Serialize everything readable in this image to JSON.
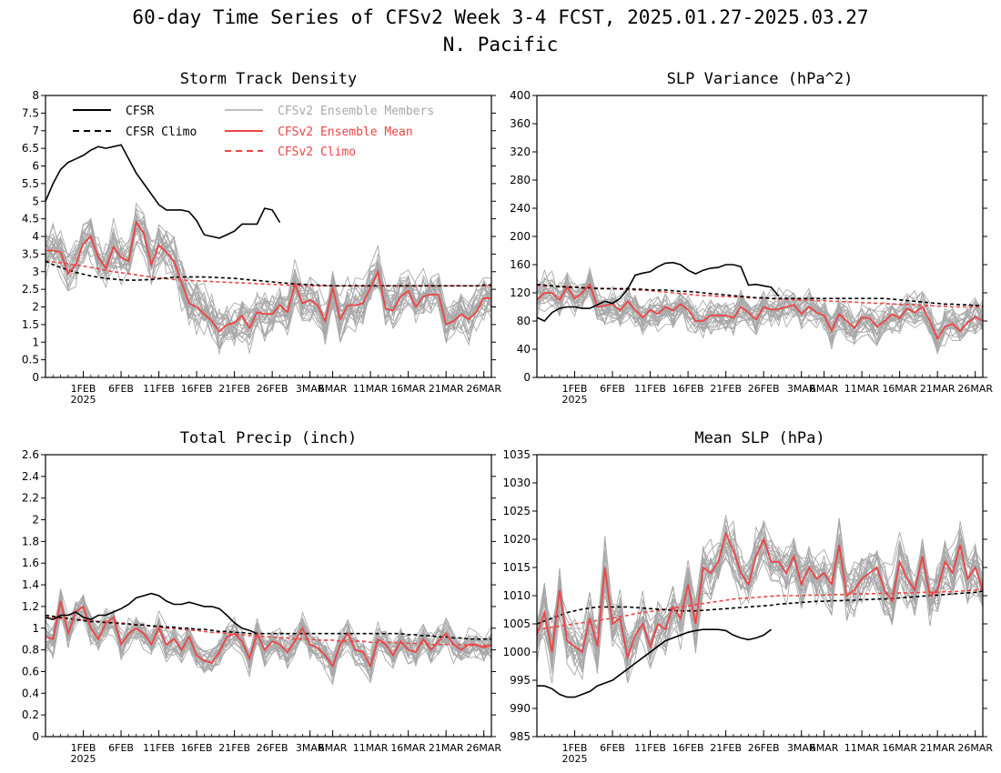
{
  "title_line1": "60-day Time Series of CFSv2 Week 3-4 FCST, 2025.01.27-2025.03.27",
  "title_line2": "N. Pacific",
  "x_ticks": [
    "1FEB",
    "6FEB",
    "11FEB",
    "16FEB",
    "21FEB",
    "26FEB",
    "3MAR",
    "6MAR",
    "11MAR",
    "16MAR",
    "21MAR",
    "26MAR"
  ],
  "x_tick_days": [
    5,
    10,
    15,
    20,
    25,
    30,
    35,
    38,
    43,
    48,
    53,
    58
  ],
  "x_year_label": "2025",
  "x_year_day": 5,
  "legend": {
    "cfsr": "CFSR",
    "cfsr_climo": "CFSR Climo",
    "members": "CFSv2 Ensemble Members",
    "ens_mean": "CFSv2 Ensemble Mean",
    "cfsv2_climo": "CFSv2 Climo"
  },
  "colors": {
    "cfsr": "#000000",
    "members": "#a8a8a8",
    "ens_mean": "#ee4444",
    "frame": "#000000"
  },
  "chart_data": [
    {
      "type": "line",
      "title": "Storm Track Density",
      "x_start": "2025-01-27",
      "n_days": 60,
      "ylim": [
        0,
        8
      ],
      "yticks": [
        "0",
        "0.5",
        "1",
        "1.5",
        "2",
        "2.5",
        "3",
        "3.5",
        "4",
        "4.5",
        "5",
        "5.5",
        "6",
        "6.5",
        "7",
        "7.5",
        "8"
      ],
      "series": [
        {
          "name": "CFSR",
          "style": "cfsr",
          "values": [
            5.0,
            5.5,
            5.9,
            6.1,
            6.2,
            6.3,
            6.45,
            6.55,
            6.5,
            6.55,
            6.6,
            6.2,
            5.8,
            5.5,
            5.2,
            4.9,
            4.75,
            4.75,
            4.75,
            4.7,
            4.45,
            4.05,
            4.0,
            3.95,
            4.05,
            4.15,
            4.35,
            4.35,
            4.35,
            4.8,
            4.75,
            4.4
          ]
        },
        {
          "name": "CFSR Climo",
          "style": "cfsr_climo",
          "values": [
            3.3,
            3.2,
            3.12,
            3.05,
            2.98,
            2.93,
            2.88,
            2.84,
            2.81,
            2.79,
            2.77,
            2.76,
            2.76,
            2.77,
            2.78,
            2.8,
            2.82,
            2.84,
            2.85,
            2.85,
            2.85,
            2.85,
            2.84,
            2.83,
            2.82,
            2.81,
            2.79,
            2.77,
            2.75,
            2.73,
            2.71,
            2.69,
            2.67,
            2.65,
            2.64,
            2.63,
            2.62,
            2.61,
            2.6,
            2.6,
            2.6,
            2.6,
            2.6,
            2.6,
            2.6,
            2.6,
            2.6,
            2.6,
            2.6,
            2.6,
            2.6,
            2.6,
            2.6,
            2.6,
            2.6,
            2.6,
            2.6,
            2.6,
            2.62,
            2.62
          ]
        },
        {
          "name": "CFSv2 Ensemble Mean",
          "style": "ens_mean",
          "values": [
            3.6,
            3.6,
            3.55,
            2.95,
            3.2,
            3.8,
            4.0,
            3.4,
            3.1,
            3.7,
            3.4,
            3.3,
            4.4,
            4.1,
            3.2,
            3.75,
            3.55,
            3.3,
            2.7,
            2.1,
            2.0,
            1.8,
            1.6,
            1.3,
            1.5,
            1.55,
            1.75,
            1.4,
            1.85,
            1.8,
            1.8,
            2.05,
            1.85,
            2.65,
            2.1,
            2.2,
            2.05,
            1.6,
            2.55,
            1.65,
            2.05,
            2.05,
            2.1,
            2.55,
            3.0,
            1.95,
            1.9,
            2.3,
            2.45,
            2.0,
            2.3,
            2.35,
            2.35,
            1.5,
            1.6,
            1.8,
            1.65,
            1.85,
            2.25,
            2.25
          ]
        },
        {
          "name": "CFSv2 Climo",
          "style": "cfsv2_climo",
          "values": [
            3.3,
            3.28,
            3.25,
            3.22,
            3.19,
            3.16,
            3.12,
            3.08,
            3.04,
            3.0,
            2.97,
            2.94,
            2.91,
            2.88,
            2.85,
            2.82,
            2.8,
            2.78,
            2.76,
            2.75,
            2.74,
            2.73,
            2.72,
            2.71,
            2.7,
            2.69,
            2.68,
            2.67,
            2.66,
            2.65,
            2.64,
            2.63,
            2.62,
            2.61,
            2.6,
            2.6,
            2.6,
            2.6,
            2.6,
            2.6,
            2.6,
            2.6,
            2.6,
            2.6,
            2.6,
            2.6,
            2.6,
            2.6,
            2.6,
            2.6,
            2.6,
            2.6,
            2.6,
            2.6,
            2.6,
            2.6,
            2.6,
            2.6,
            2.6,
            2.6
          ]
        }
      ],
      "ensemble": {
        "members": 24,
        "spread": 0.75,
        "seed": 11
      }
    },
    {
      "type": "line",
      "title": "SLP Variance (hPa^2)",
      "x_start": "2025-01-27",
      "n_days": 60,
      "ylim": [
        0,
        400
      ],
      "yticks": [
        "0",
        "40",
        "80",
        "120",
        "160",
        "200",
        "240",
        "280",
        "320",
        "360",
        "400"
      ],
      "series": [
        {
          "name": "CFSR",
          "style": "cfsr",
          "values": [
            85,
            80,
            92,
            98,
            100,
            100,
            98,
            98,
            103,
            108,
            105,
            112,
            125,
            145,
            148,
            150,
            157,
            162,
            163,
            160,
            152,
            147,
            152,
            155,
            156,
            160,
            160,
            157,
            131,
            132,
            130,
            128,
            115
          ]
        },
        {
          "name": "CFSR Climo",
          "style": "cfsr_climo",
          "values": [
            132,
            131,
            130,
            129,
            128,
            128,
            127,
            127,
            126,
            126,
            126,
            126,
            126,
            125,
            125,
            124,
            124,
            124,
            123,
            122,
            122,
            121,
            120,
            119,
            118,
            117,
            116,
            115,
            114,
            113,
            113,
            112,
            112,
            112,
            112,
            112,
            112,
            112,
            112,
            112,
            112,
            112,
            112,
            112,
            112,
            112,
            112,
            111,
            110,
            109,
            108,
            107,
            106,
            105,
            104,
            104,
            103,
            103,
            102,
            102
          ]
        },
        {
          "name": "CFSv2 Ensemble Mean",
          "style": "ens_mean",
          "values": [
            110,
            120,
            120,
            110,
            128,
            112,
            120,
            132,
            100,
            102,
            104,
            95,
            108,
            96,
            85,
            96,
            90,
            100,
            95,
            104,
            96,
            80,
            80,
            88,
            88,
            88,
            84,
            100,
            92,
            82,
            100,
            96,
            97,
            100,
            103,
            90,
            100,
            92,
            88,
            66,
            90,
            80,
            70,
            85,
            84,
            72,
            80,
            90,
            84,
            98,
            92,
            100,
            80,
            55,
            72,
            76,
            66,
            78,
            86,
            80
          ]
        },
        {
          "name": "CFSv2 Climo",
          "style": "cfsv2_climo",
          "values": [
            130,
            130,
            130,
            129,
            129,
            128,
            128,
            127,
            127,
            126,
            126,
            125,
            125,
            124,
            124,
            123,
            122,
            121,
            120,
            119,
            118,
            117,
            116,
            116,
            115,
            115,
            114,
            114,
            113,
            113,
            112,
            112,
            111,
            111,
            110,
            110,
            110,
            109,
            109,
            108,
            108,
            107,
            107,
            106,
            106,
            105,
            105,
            104,
            104,
            103,
            103,
            102,
            102,
            101,
            101,
            100,
            100,
            100,
            100,
            100
          ]
        }
      ],
      "ensemble": {
        "members": 24,
        "spread": 28,
        "seed": 23
      }
    },
    {
      "type": "line",
      "title": "Total Precip (inch)",
      "x_start": "2025-01-27",
      "n_days": 60,
      "ylim": [
        0,
        2.6
      ],
      "yticks": [
        "0",
        "0.2",
        "0.4",
        "0.6",
        "0.8",
        "1",
        "1.2",
        "1.4",
        "1.6",
        "1.8",
        "2",
        "2.2",
        "2.4",
        "2.6"
      ],
      "series": [
        {
          "name": "CFSR",
          "style": "cfsr",
          "values": [
            1.1,
            1.08,
            1.12,
            1.12,
            1.15,
            1.1,
            1.08,
            1.12,
            1.12,
            1.15,
            1.18,
            1.22,
            1.28,
            1.3,
            1.32,
            1.3,
            1.25,
            1.22,
            1.22,
            1.24,
            1.22,
            1.2,
            1.2,
            1.18,
            1.12,
            1.05,
            1.0,
            0.98,
            0.95
          ]
        },
        {
          "name": "CFSR Climo",
          "style": "cfsr_climo",
          "values": [
            1.12,
            1.11,
            1.1,
            1.09,
            1.08,
            1.07,
            1.06,
            1.06,
            1.05,
            1.05,
            1.04,
            1.04,
            1.03,
            1.03,
            1.02,
            1.02,
            1.01,
            1.01,
            1.0,
            1.0,
            0.99,
            0.99,
            0.98,
            0.97,
            0.97,
            0.96,
            0.96,
            0.95,
            0.95,
            0.95,
            0.95,
            0.95,
            0.95,
            0.95,
            0.95,
            0.95,
            0.95,
            0.95,
            0.95,
            0.95,
            0.95,
            0.95,
            0.95,
            0.95,
            0.95,
            0.95,
            0.95,
            0.95,
            0.94,
            0.94,
            0.93,
            0.93,
            0.92,
            0.92,
            0.91,
            0.91,
            0.9,
            0.9,
            0.9,
            0.9
          ]
        },
        {
          "name": "CFSv2 Ensemble Mean",
          "style": "ens_mean",
          "values": [
            0.92,
            0.9,
            1.25,
            0.95,
            1.15,
            1.2,
            1.0,
            0.9,
            1.05,
            1.1,
            0.85,
            0.95,
            1.0,
            0.95,
            0.85,
            1.0,
            0.85,
            0.9,
            0.8,
            0.92,
            0.75,
            0.7,
            0.68,
            0.78,
            0.92,
            0.95,
            0.88,
            0.72,
            0.95,
            0.8,
            0.88,
            0.85,
            0.78,
            0.88,
            1.0,
            0.85,
            0.82,
            0.75,
            0.65,
            0.85,
            0.95,
            0.8,
            0.78,
            0.65,
            0.9,
            0.85,
            0.75,
            0.88,
            0.8,
            0.78,
            0.9,
            0.8,
            0.88,
            0.95,
            0.85,
            0.8,
            0.85,
            0.85,
            0.82,
            0.85
          ]
        },
        {
          "name": "CFSv2 Climo",
          "style": "cfsv2_climo",
          "values": [
            1.1,
            1.1,
            1.09,
            1.09,
            1.08,
            1.08,
            1.07,
            1.06,
            1.06,
            1.05,
            1.05,
            1.04,
            1.03,
            1.03,
            1.02,
            1.01,
            1.0,
            1.0,
            0.99,
            0.98,
            0.98,
            0.97,
            0.96,
            0.96,
            0.95,
            0.94,
            0.94,
            0.93,
            0.93,
            0.92,
            0.92,
            0.91,
            0.91,
            0.9,
            0.9,
            0.9,
            0.89,
            0.89,
            0.89,
            0.88,
            0.88,
            0.88,
            0.88,
            0.87,
            0.87,
            0.87,
            0.87,
            0.86,
            0.86,
            0.86,
            0.86,
            0.85,
            0.85,
            0.85,
            0.85,
            0.85,
            0.84,
            0.84,
            0.84,
            0.84
          ]
        }
      ],
      "ensemble": {
        "members": 24,
        "spread": 0.16,
        "seed": 37
      }
    },
    {
      "type": "line",
      "title": "Mean SLP (hPa)",
      "x_start": "2025-01-27",
      "n_days": 60,
      "ylim": [
        985,
        1035
      ],
      "yticks": [
        "985",
        "990",
        "995",
        "1000",
        "1005",
        "1010",
        "1015",
        "1020",
        "1025",
        "1030",
        "1035"
      ],
      "series": [
        {
          "name": "CFSR",
          "style": "cfsr",
          "values": [
            994,
            994,
            993.5,
            992.5,
            992,
            992,
            992.5,
            993,
            994,
            994.5,
            995,
            996,
            997,
            998,
            999,
            1000,
            1001,
            1002,
            1002.5,
            1003,
            1003.5,
            1003.8,
            1004,
            1004,
            1004,
            1003.8,
            1003,
            1002.5,
            1002.2,
            1002.5,
            1003,
            1004
          ]
        },
        {
          "name": "CFSR Climo",
          "style": "cfsr_climo",
          "values": [
            1005,
            1005.5,
            1006,
            1006.5,
            1007,
            1007.3,
            1007.6,
            1007.8,
            1008,
            1008,
            1008,
            1008,
            1008,
            1007.9,
            1007.8,
            1007.7,
            1007.6,
            1007.5,
            1007.4,
            1007.3,
            1007.3,
            1007.3,
            1007.4,
            1007.5,
            1007.6,
            1007.7,
            1007.8,
            1007.9,
            1008,
            1008.1,
            1008.2,
            1008.3,
            1008.5,
            1008.6,
            1008.7,
            1008.8,
            1008.9,
            1009,
            1009,
            1009.1,
            1009.1,
            1009.2,
            1009.2,
            1009.3,
            1009.3,
            1009.4,
            1009.4,
            1009.5,
            1009.6,
            1009.7,
            1009.8,
            1009.9,
            1010,
            1010.1,
            1010.2,
            1010.3,
            1010.4,
            1010.5,
            1010.6,
            1010.8
          ]
        },
        {
          "name": "CFSv2 Ensemble Mean",
          "style": "ens_mean",
          "values": [
            1003,
            1007,
            1000,
            1011,
            1002,
            1001,
            1000,
            1006,
            1001,
            1015,
            1005,
            1006,
            999,
            1003,
            1005,
            1001,
            1005,
            1004,
            1008,
            1006,
            1012,
            1005,
            1015,
            1014,
            1016,
            1021,
            1018,
            1014,
            1012,
            1017,
            1020,
            1016,
            1016,
            1014,
            1017,
            1012,
            1015,
            1013,
            1014,
            1012,
            1019,
            1010,
            1011,
            1013,
            1014,
            1015,
            1011,
            1009,
            1016,
            1013,
            1011,
            1017,
            1010,
            1011,
            1016,
            1014,
            1019,
            1013,
            1015,
            1011
          ]
        },
        {
          "name": "CFSv2 Climo",
          "style": "cfsv2_climo",
          "values": [
            1004,
            1004.2,
            1004.4,
            1004.6,
            1004.8,
            1005,
            1005.2,
            1005.4,
            1005.6,
            1005.8,
            1006,
            1006.3,
            1006.5,
            1006.8,
            1007,
            1007.2,
            1007.4,
            1007.6,
            1007.8,
            1008,
            1008.2,
            1008.4,
            1008.6,
            1008.8,
            1009,
            1009.2,
            1009.4,
            1009.5,
            1009.6,
            1009.7,
            1009.8,
            1009.9,
            1010,
            1010,
            1010,
            1010,
            1010.1,
            1010.1,
            1010.1,
            1010.2,
            1010.2,
            1010.2,
            1010.3,
            1010.3,
            1010.3,
            1010.4,
            1010.4,
            1010.4,
            1010.5,
            1010.5,
            1010.5,
            1010.6,
            1010.6,
            1010.6,
            1010.7,
            1010.7,
            1010.8,
            1010.9,
            1011,
            1011.2
          ]
        }
      ],
      "ensemble": {
        "members": 24,
        "spread": 5.5,
        "seed": 53
      }
    }
  ]
}
